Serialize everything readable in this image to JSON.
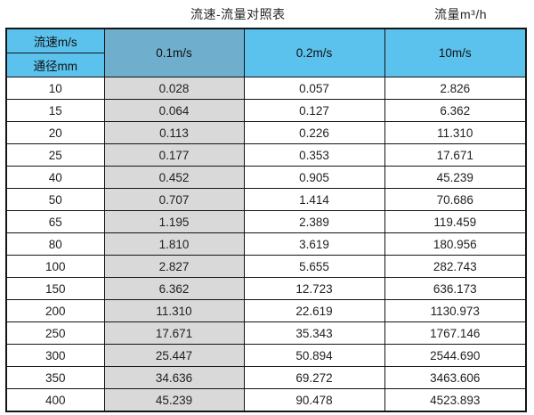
{
  "header": {
    "title": "流速-流量对照表",
    "unit_label": "流量m³/h"
  },
  "table": {
    "corner_top": "流速m/s",
    "corner_bottom": "通径mm",
    "columns": [
      "0.1m/s",
      "0.2m/s",
      "10m/s"
    ],
    "rows": [
      [
        "10",
        "0.028",
        "0.057",
        "2.826"
      ],
      [
        "15",
        "0.064",
        "0.127",
        "6.362"
      ],
      [
        "20",
        "0.113",
        "0.226",
        "11.310"
      ],
      [
        "25",
        "0.177",
        "0.353",
        "17.671"
      ],
      [
        "40",
        "0.452",
        "0.905",
        "45.239"
      ],
      [
        "50",
        "0.707",
        "1.414",
        "70.686"
      ],
      [
        "65",
        "1.195",
        "2.389",
        "119.459"
      ],
      [
        "80",
        "1.810",
        "3.619",
        "180.956"
      ],
      [
        "100",
        "2.827",
        "5.655",
        "282.743"
      ],
      [
        "150",
        "6.362",
        "12.723",
        "636.173"
      ],
      [
        "200",
        "11.310",
        "22.619",
        "1130.973"
      ],
      [
        "250",
        "17.671",
        "35.343",
        "1767.146"
      ],
      [
        "300",
        "25.447",
        "50.894",
        "2544.690"
      ],
      [
        "350",
        "34.636",
        "69.272",
        "3463.606"
      ],
      [
        "400",
        "45.239",
        "90.478",
        "4523.893"
      ]
    ]
  },
  "colors": {
    "header_blue": "#5BC2EE",
    "header_blue_dark": "#6FAECC",
    "shaded_column": "#D9D9D9",
    "border": "#141414"
  },
  "chart_data": {
    "type": "table",
    "title": "流速-流量对照表",
    "value_unit": "流量m³/h",
    "columns": [
      "通径mm",
      "0.1m/s",
      "0.2m/s",
      "10m/s"
    ],
    "rows": [
      [
        10,
        0.028,
        0.057,
        2.826
      ],
      [
        15,
        0.064,
        0.127,
        6.362
      ],
      [
        20,
        0.113,
        0.226,
        11.31
      ],
      [
        25,
        0.177,
        0.353,
        17.671
      ],
      [
        40,
        0.452,
        0.905,
        45.239
      ],
      [
        50,
        0.707,
        1.414,
        70.686
      ],
      [
        65,
        1.195,
        2.389,
        119.459
      ],
      [
        80,
        1.81,
        3.619,
        180.956
      ],
      [
        100,
        2.827,
        5.655,
        282.743
      ],
      [
        150,
        6.362,
        12.723,
        636.173
      ],
      [
        200,
        11.31,
        22.619,
        1130.973
      ],
      [
        250,
        17.671,
        35.343,
        1767.146
      ],
      [
        300,
        25.447,
        50.894,
        2544.69
      ],
      [
        350,
        34.636,
        69.272,
        3463.606
      ],
      [
        400,
        45.239,
        90.478,
        4523.893
      ]
    ]
  }
}
